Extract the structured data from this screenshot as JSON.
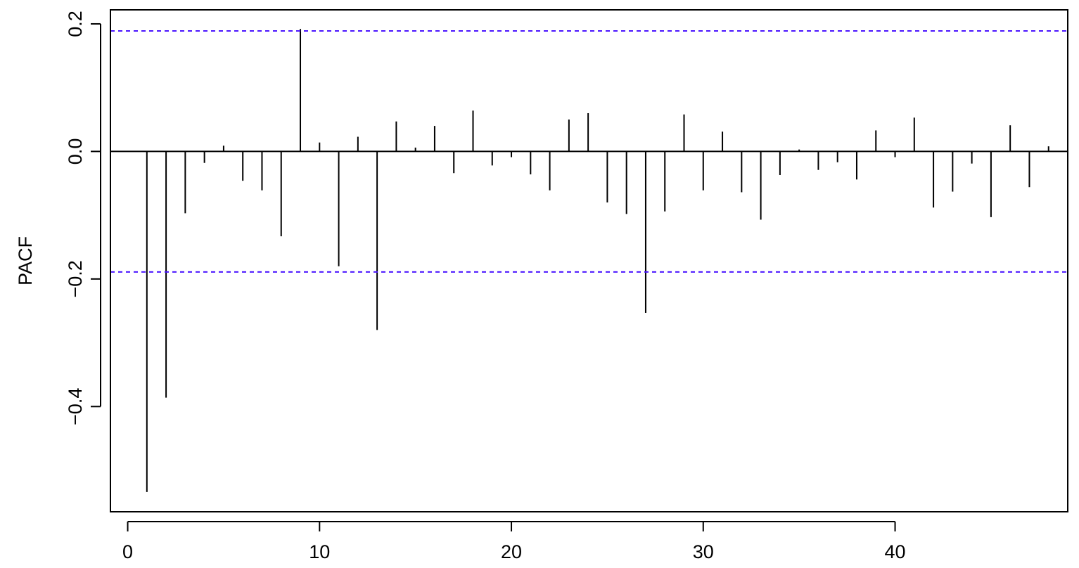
{
  "chart_data": {
    "type": "bar",
    "ylabel": "PACF",
    "xlabel": "",
    "xlim": [
      -0.9,
      49.0
    ],
    "ylim": [
      -0.565,
      0.222
    ],
    "x_ticks": [
      0,
      10,
      20,
      30,
      40
    ],
    "y_ticks": [
      -0.4,
      -0.2,
      0.0,
      0.2
    ],
    "x_tick_labels": [
      "0",
      "10",
      "20",
      "30",
      "40"
    ],
    "y_tick_labels": [
      "−0.4",
      "−0.2",
      "0.0",
      "0.2"
    ],
    "confidence_bound": 0.189,
    "bound_color": "#4a14ff",
    "grid": false,
    "x": [
      1,
      2,
      3,
      4,
      5,
      6,
      7,
      8,
      9,
      10,
      11,
      12,
      13,
      14,
      15,
      16,
      17,
      18,
      19,
      20,
      21,
      22,
      23,
      24,
      25,
      26,
      27,
      28,
      29,
      30,
      31,
      32,
      33,
      34,
      35,
      36,
      37,
      38,
      39,
      40,
      41,
      42,
      43,
      44,
      45,
      46,
      47,
      48
    ],
    "values": [
      -0.534,
      -0.386,
      -0.097,
      -0.018,
      0.009,
      -0.046,
      -0.061,
      -0.133,
      0.192,
      0.014,
      -0.18,
      0.023,
      -0.28,
      0.047,
      0.006,
      0.04,
      -0.034,
      0.064,
      -0.022,
      -0.009,
      -0.036,
      -0.061,
      0.05,
      0.06,
      -0.08,
      -0.098,
      -0.253,
      -0.094,
      0.058,
      -0.061,
      0.031,
      -0.064,
      -0.107,
      -0.037,
      0.003,
      -0.029,
      -0.017,
      -0.044,
      0.033,
      -0.009,
      0.053,
      -0.088,
      -0.063,
      -0.019,
      -0.103,
      0.041,
      -0.056,
      0.008
    ]
  }
}
